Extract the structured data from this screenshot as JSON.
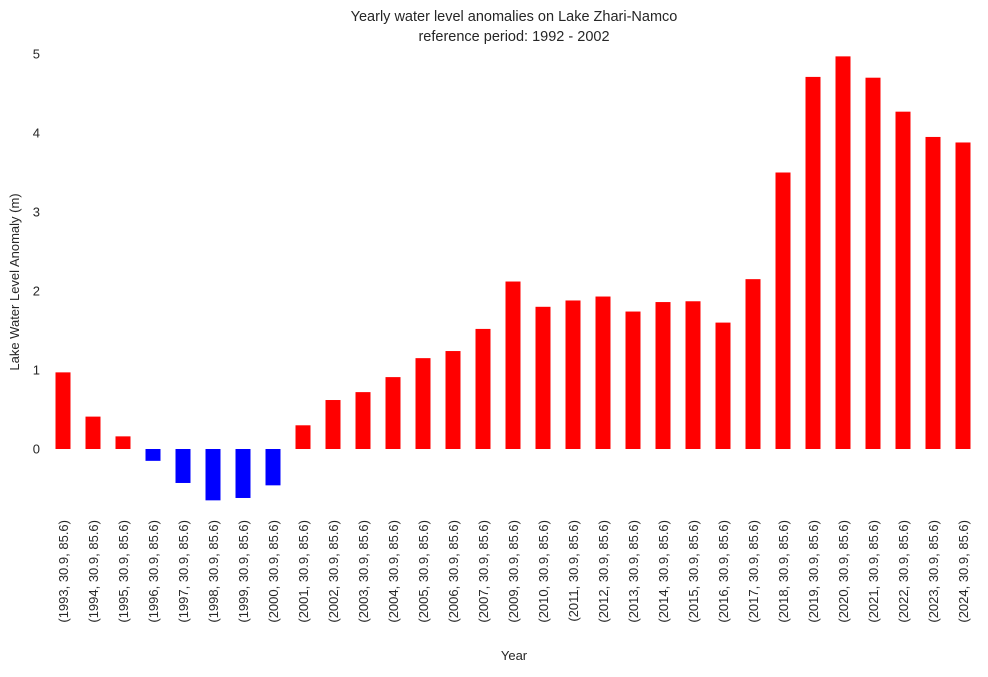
{
  "chart_data": {
    "type": "bar",
    "title": "Yearly water level anomalies on Lake Zhari-Namco",
    "subtitle": "reference period:  1992 - 2002",
    "xlabel": "Year",
    "ylabel": "Lake Water Level Anomaly (m)",
    "ylim": [
      -0.65,
      5.0
    ],
    "yticks": [
      "0",
      "1",
      "2",
      "3",
      "4",
      "5"
    ],
    "grid": false,
    "colors": {
      "positive": "#ff0000",
      "negative": "#0000ff",
      "text": "#262626"
    },
    "categories": [
      "(1993, 30.9, 85.6)",
      "(1994, 30.9, 85.6)",
      "(1995, 30.9, 85.6)",
      "(1996, 30.9, 85.6)",
      "(1997, 30.9, 85.6)",
      "(1998, 30.9, 85.6)",
      "(1999, 30.9, 85.6)",
      "(2000, 30.9, 85.6)",
      "(2001, 30.9, 85.6)",
      "(2002, 30.9, 85.6)",
      "(2003, 30.9, 85.6)",
      "(2004, 30.9, 85.6)",
      "(2005, 30.9, 85.6)",
      "(2006, 30.9, 85.6)",
      "(2007, 30.9, 85.6)",
      "(2009, 30.9, 85.6)",
      "(2010, 30.9, 85.6)",
      "(2011, 30.9, 85.6)",
      "(2012, 30.9, 85.6)",
      "(2013, 30.9, 85.6)",
      "(2014, 30.9, 85.6)",
      "(2015, 30.9, 85.6)",
      "(2016, 30.9, 85.6)",
      "(2017, 30.9, 85.6)",
      "(2018, 30.9, 85.6)",
      "(2019, 30.9, 85.6)",
      "(2020, 30.9, 85.6)",
      "(2021, 30.9, 85.6)",
      "(2022, 30.9, 85.6)",
      "(2023, 30.9, 85.6)",
      "(2024, 30.9, 85.6)"
    ],
    "values": [
      0.97,
      0.41,
      0.16,
      -0.15,
      -0.43,
      -0.65,
      -0.62,
      -0.46,
      0.3,
      0.62,
      0.72,
      0.91,
      1.15,
      1.24,
      1.52,
      2.12,
      1.8,
      1.88,
      1.93,
      1.74,
      1.86,
      1.87,
      1.6,
      2.15,
      3.5,
      4.71,
      4.97,
      4.7,
      4.27,
      3.95,
      3.88
    ]
  }
}
